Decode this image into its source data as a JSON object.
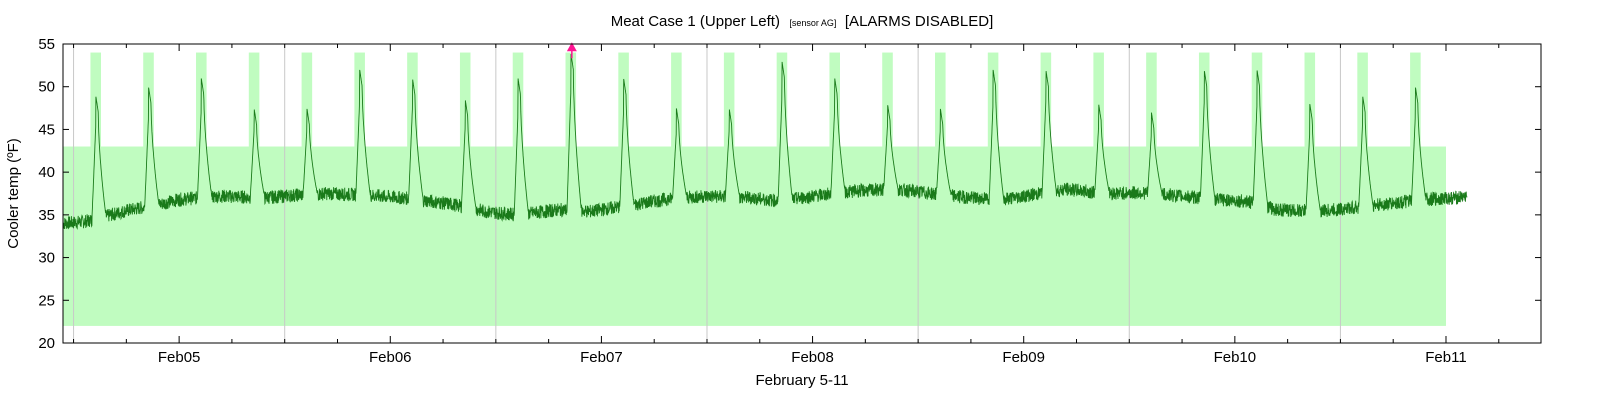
{
  "chart_data": {
    "type": "line",
    "title": {
      "main": "Meat Case 1 (Upper Left)",
      "sensor": "[sensor AG]",
      "status": "[ALARMS DISABLED]"
    },
    "xlabel": "February  5-11",
    "ylabel": "Cooler temp (ºF)",
    "ylim": [
      20,
      55
    ],
    "yticks": [
      20,
      25,
      30,
      35,
      40,
      45,
      50,
      55
    ],
    "xlim_days": [
      4.45,
      11.45
    ],
    "xticks": [
      {
        "label": "Feb05",
        "day": 5
      },
      {
        "label": "Feb06",
        "day": 6
      },
      {
        "label": "Feb07",
        "day": 7
      },
      {
        "label": "Feb08",
        "day": 8
      },
      {
        "label": "Feb09",
        "day": 9
      },
      {
        "label": "Feb10",
        "day": 10
      },
      {
        "label": "Feb11",
        "day": 11
      }
    ],
    "grid": "vertical-major",
    "colors": {
      "band": "#c0fcc0",
      "line": "#1a7a1a",
      "marker": "#ff1493",
      "grid": "#c8c8c8"
    },
    "normal_range": {
      "low": 22,
      "high": 43,
      "x_end_day": 11.0
    },
    "defrost_windows": [
      {
        "start": 4.58,
        "end": 4.63
      },
      {
        "start": 4.83,
        "end": 4.88
      },
      {
        "start": 5.08,
        "end": 5.13
      },
      {
        "start": 5.33,
        "end": 5.38
      },
      {
        "start": 5.58,
        "end": 5.63
      },
      {
        "start": 5.83,
        "end": 5.88
      },
      {
        "start": 6.08,
        "end": 6.13
      },
      {
        "start": 6.33,
        "end": 6.38
      },
      {
        "start": 6.58,
        "end": 6.63
      },
      {
        "start": 6.83,
        "end": 6.88
      },
      {
        "start": 7.08,
        "end": 7.13
      },
      {
        "start": 7.33,
        "end": 7.38
      },
      {
        "start": 7.58,
        "end": 7.63
      },
      {
        "start": 7.83,
        "end": 7.88
      },
      {
        "start": 8.08,
        "end": 8.13
      },
      {
        "start": 8.33,
        "end": 8.38
      },
      {
        "start": 8.58,
        "end": 8.63
      },
      {
        "start": 8.83,
        "end": 8.88
      },
      {
        "start": 9.08,
        "end": 9.13
      },
      {
        "start": 9.33,
        "end": 9.38
      },
      {
        "start": 9.58,
        "end": 9.63
      },
      {
        "start": 9.83,
        "end": 9.88
      },
      {
        "start": 10.08,
        "end": 10.13
      },
      {
        "start": 10.33,
        "end": 10.38
      },
      {
        "start": 10.58,
        "end": 10.63
      },
      {
        "start": 10.83,
        "end": 10.88
      }
    ],
    "defrost_window_top": 54,
    "baseline": [
      [
        4.45,
        34.0
      ],
      [
        4.55,
        34.2
      ],
      [
        4.65,
        34.8
      ],
      [
        4.75,
        35.5
      ],
      [
        4.9,
        36.2
      ],
      [
        5.0,
        36.8
      ],
      [
        5.2,
        37.2
      ],
      [
        5.4,
        37.0
      ],
      [
        5.55,
        37.3
      ],
      [
        5.7,
        37.5
      ],
      [
        5.9,
        37.3
      ],
      [
        6.1,
        36.9
      ],
      [
        6.3,
        36.2
      ],
      [
        6.45,
        35.4
      ],
      [
        6.6,
        35.0
      ],
      [
        6.8,
        35.6
      ],
      [
        6.95,
        35.4
      ],
      [
        7.1,
        36.0
      ],
      [
        7.3,
        36.8
      ],
      [
        7.5,
        37.2
      ],
      [
        7.7,
        37.0
      ],
      [
        7.85,
        36.6
      ],
      [
        8.0,
        37.2
      ],
      [
        8.2,
        37.8
      ],
      [
        8.4,
        38.0
      ],
      [
        8.6,
        37.4
      ],
      [
        8.75,
        37.0
      ],
      [
        8.9,
        36.8
      ],
      [
        9.05,
        37.4
      ],
      [
        9.2,
        38.0
      ],
      [
        9.4,
        37.5
      ],
      [
        9.55,
        37.6
      ],
      [
        9.75,
        37.2
      ],
      [
        9.9,
        36.8
      ],
      [
        10.05,
        36.6
      ],
      [
        10.2,
        35.6
      ],
      [
        10.4,
        35.4
      ],
      [
        10.55,
        35.8
      ],
      [
        10.7,
        36.2
      ],
      [
        10.9,
        36.8
      ],
      [
        11.05,
        37.0
      ],
      [
        11.1,
        37.2
      ]
    ],
    "spikes": [
      {
        "day": 4.605,
        "peak": 49
      },
      {
        "day": 4.855,
        "peak": 50
      },
      {
        "day": 5.105,
        "peak": 51
      },
      {
        "day": 5.355,
        "peak": 47.5
      },
      {
        "day": 5.605,
        "peak": 47.5
      },
      {
        "day": 5.855,
        "peak": 52
      },
      {
        "day": 6.105,
        "peak": 51
      },
      {
        "day": 6.355,
        "peak": 48.5
      },
      {
        "day": 6.605,
        "peak": 51
      },
      {
        "day": 6.855,
        "peak": 54
      },
      {
        "day": 7.105,
        "peak": 51
      },
      {
        "day": 7.355,
        "peak": 47.5
      },
      {
        "day": 7.605,
        "peak": 47.5
      },
      {
        "day": 7.855,
        "peak": 53
      },
      {
        "day": 8.105,
        "peak": 51
      },
      {
        "day": 8.355,
        "peak": 48
      },
      {
        "day": 8.605,
        "peak": 47.5
      },
      {
        "day": 8.855,
        "peak": 52
      },
      {
        "day": 9.105,
        "peak": 52
      },
      {
        "day": 9.355,
        "peak": 48
      },
      {
        "day": 9.605,
        "peak": 47
      },
      {
        "day": 9.855,
        "peak": 52
      },
      {
        "day": 10.105,
        "peak": 52
      },
      {
        "day": 10.355,
        "peak": 48
      },
      {
        "day": 10.605,
        "peak": 49
      },
      {
        "day": 10.855,
        "peak": 50
      }
    ],
    "alarm_marker": {
      "day": 6.86,
      "value": 54.5
    }
  }
}
